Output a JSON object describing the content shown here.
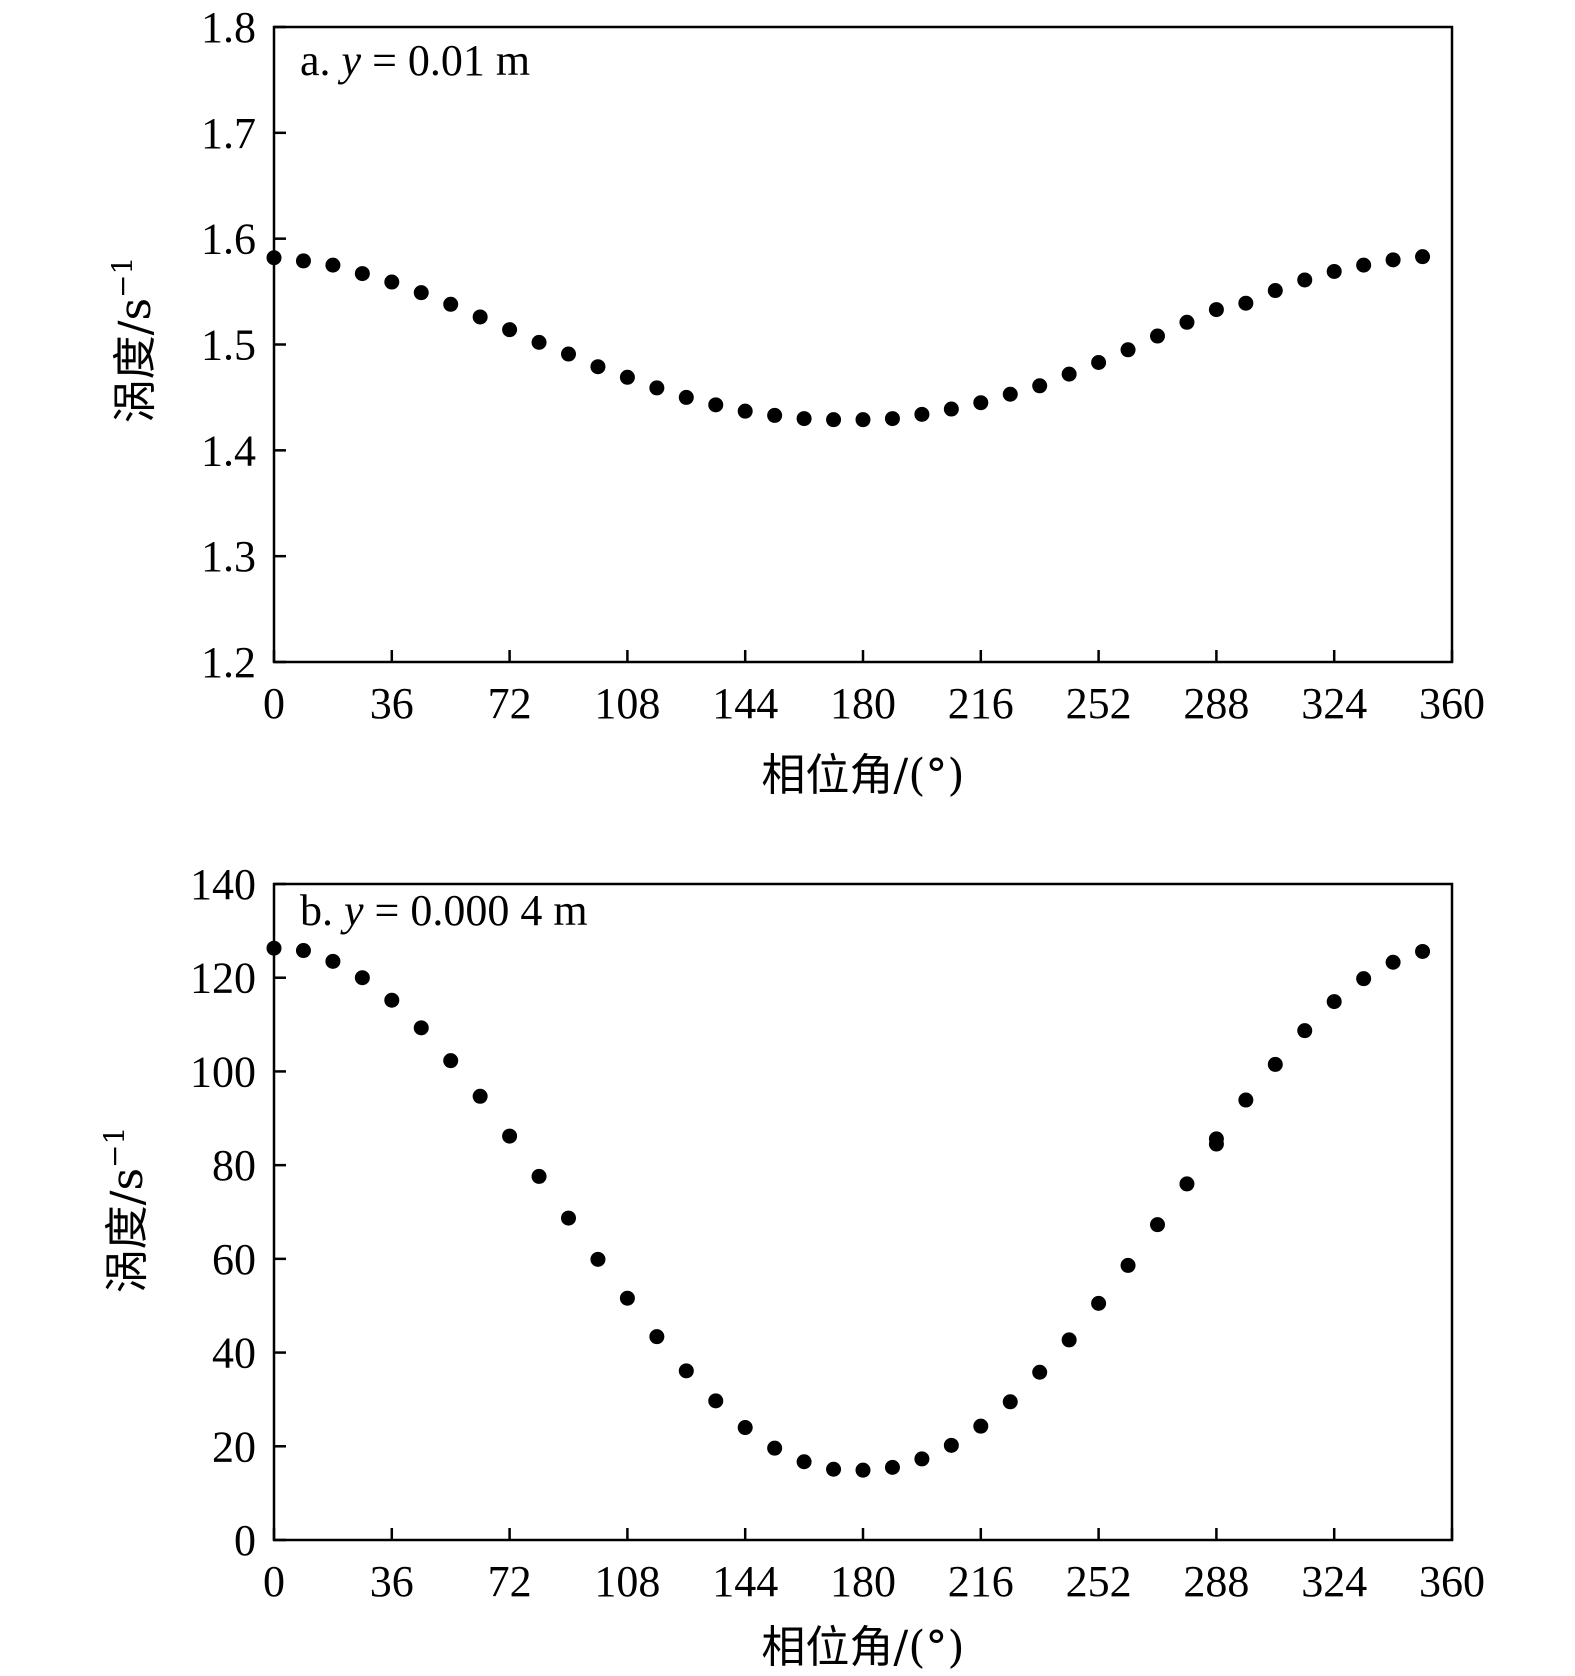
{
  "chart_data": [
    {
      "type": "scatter",
      "panel_label": "a.",
      "panel_var": "y",
      "panel_value": " = 0.01 m",
      "xlabel": "相位角/(°)",
      "ylabel_main": "涡度/s",
      "ylabel_sup": "−1",
      "xlim": [
        0,
        360
      ],
      "ylim": [
        1.2,
        1.8
      ],
      "xticks": [
        0,
        36,
        72,
        108,
        144,
        180,
        216,
        252,
        288,
        324,
        360
      ],
      "yticks": [
        1.2,
        1.3,
        1.4,
        1.5,
        1.6,
        1.7,
        1.8
      ],
      "ytick_labels": [
        "1.2",
        "1.3",
        "1.4",
        "1.5",
        "1.6",
        "1.7",
        "1.8"
      ],
      "grid": false,
      "legend": "none",
      "marker_color": "#000000",
      "x": [
        0,
        9,
        18,
        27,
        36,
        45,
        54,
        63,
        72,
        81,
        90,
        99,
        108,
        117,
        126,
        135,
        144,
        153,
        162,
        171,
        180,
        189,
        198,
        207,
        216,
        225,
        234,
        243,
        252,
        261,
        270,
        279,
        288,
        297,
        306,
        315,
        324,
        333,
        342,
        351
      ],
      "y": [
        1.582,
        1.579,
        1.575,
        1.567,
        1.559,
        1.549,
        1.538,
        1.526,
        1.514,
        1.502,
        1.491,
        1.479,
        1.469,
        1.459,
        1.45,
        1.443,
        1.437,
        1.433,
        1.43,
        1.429,
        1.429,
        1.43,
        1.434,
        1.439,
        1.445,
        1.453,
        1.461,
        1.472,
        1.483,
        1.495,
        1.508,
        1.521,
        1.533,
        1.539,
        1.551,
        1.561,
        1.569,
        1.575,
        1.58,
        1.583
      ]
    },
    {
      "type": "scatter",
      "panel_label": "b.",
      "panel_var": "y",
      "panel_value": " = 0.000 4 m",
      "xlabel": "相位角/(°)",
      "ylabel_main": "涡度/s",
      "ylabel_sup": "−1",
      "xlim": [
        0,
        360
      ],
      "ylim": [
        0,
        140
      ],
      "xticks": [
        0,
        36,
        72,
        108,
        144,
        180,
        216,
        252,
        288,
        324,
        360
      ],
      "yticks": [
        0,
        20,
        40,
        60,
        80,
        100,
        120,
        140
      ],
      "ytick_labels": [
        "0",
        "20",
        "40",
        "60",
        "80",
        "100",
        "120",
        "140"
      ],
      "grid": false,
      "legend": "none",
      "marker_color": "#000000",
      "x": [
        0,
        9,
        18,
        27,
        36,
        45,
        54,
        63,
        72,
        81,
        90,
        99,
        108,
        117,
        126,
        135,
        144,
        153,
        162,
        171,
        180,
        189,
        198,
        207,
        216,
        225,
        234,
        243,
        252,
        261,
        270,
        279,
        288,
        288,
        297,
        306,
        315,
        324,
        333,
        342,
        351
      ],
      "y": [
        126.3,
        125.8,
        123.5,
        120.0,
        115.2,
        109.3,
        102.3,
        94.7,
        86.2,
        77.6,
        68.7,
        59.9,
        51.6,
        43.4,
        36.1,
        29.7,
        24.0,
        19.6,
        16.7,
        15.1,
        14.9,
        15.5,
        17.3,
        20.2,
        24.3,
        29.5,
        35.8,
        42.7,
        50.5,
        58.6,
        67.3,
        76.0,
        84.5,
        85.6,
        93.9,
        101.5,
        108.7,
        114.9,
        119.8,
        123.3,
        125.6
      ]
    }
  ]
}
